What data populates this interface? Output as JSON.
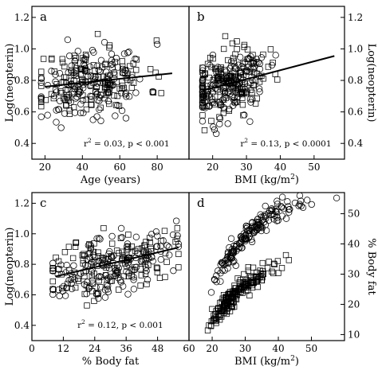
{
  "chart_data": [
    {
      "id": "a",
      "type": "scatter",
      "panel_label": "a",
      "xlabel": "Age (years)",
      "ylabel": "Log(neopterin)",
      "xlim": [
        13,
        97
      ],
      "ylim": [
        0.3,
        1.27
      ],
      "xticks": [
        20,
        40,
        60,
        80
      ],
      "yticks": [
        0.4,
        0.6,
        0.8,
        1.0,
        1.2
      ],
      "ytick_labels": [
        "0.4",
        "0.6",
        "0.8",
        "1.0",
        "1.2"
      ],
      "annotation": "r² = 0.03, p < 0.001",
      "fit": {
        "x": [
          20,
          88
        ],
        "y": [
          0.76,
          0.845
        ]
      },
      "cloud": {
        "seed": 11,
        "n_sq": 140,
        "n_ci": 140,
        "x": [
          18,
          88
        ],
        "x_center": 45,
        "x_sd": 15,
        "y_sd": 0.11,
        "y_min": 0.36,
        "y_max": 1.2
      }
    },
    {
      "id": "b",
      "type": "scatter",
      "panel_label": "b",
      "xlabel": "BMI (kg/m²)",
      "ylabel": "Log(neopterin)",
      "xlim": [
        13,
        59
      ],
      "ylim": [
        0.3,
        1.27
      ],
      "xticks": [
        20,
        30,
        40,
        50
      ],
      "yticks": [
        0.4,
        0.6,
        0.8,
        1.0,
        1.2
      ],
      "ytick_labels": [
        "0.4",
        "0.6",
        "0.8",
        "1.0",
        "1.2"
      ],
      "annotation": "r² = 0.13, p < 0.0001",
      "fit": {
        "x": [
          17,
          56
        ],
        "y": [
          0.735,
          0.955
        ]
      },
      "cloud": {
        "seed": 23,
        "n_sq": 150,
        "n_ci": 150,
        "x": [
          17,
          56
        ],
        "x_center": 24,
        "x_sd": 6,
        "y_sd": 0.1,
        "y_min": 0.37,
        "y_max": 1.18
      }
    },
    {
      "id": "c",
      "type": "scatter",
      "panel_label": "c",
      "xlabel": "% Body fat",
      "ylabel": "Log(neopterin)",
      "xlim": [
        0,
        60
      ],
      "ylim": [
        0.3,
        1.27
      ],
      "xticks": [
        0,
        12,
        24,
        36,
        48,
        60
      ],
      "yticks": [
        0.4,
        0.6,
        0.8,
        1.0,
        1.2
      ],
      "ytick_labels": [
        "0.4",
        "0.6",
        "0.8",
        "1.0",
        "1.2"
      ],
      "annotation": "r² = 0.12, p < 0.001",
      "fit": {
        "x": [
          9,
          56
        ],
        "y": [
          0.72,
          0.91
        ]
      },
      "cloud": {
        "seed": 37,
        "n_sq": 140,
        "n_ci": 140,
        "x": [
          8,
          56
        ],
        "x_center": 30,
        "x_sd": 12,
        "y_sd": 0.1,
        "y_min": 0.4,
        "y_max": 1.2
      }
    },
    {
      "id": "d",
      "type": "scatter",
      "panel_label": "d",
      "xlabel": "BMI (kg/m²)",
      "ylabel": "% Body fat",
      "xlim": [
        13,
        60
      ],
      "ylim": [
        8,
        57
      ],
      "xticks": [
        20,
        30,
        40,
        50
      ],
      "yticks": [
        10,
        20,
        30,
        40,
        50
      ],
      "ytick_labels": [
        "10",
        "20",
        "30",
        "40",
        "50"
      ],
      "annotation": "",
      "bands": [
        {
          "marker": "square",
          "n": 190,
          "x": [
            18,
            56
          ],
          "x_center": 24,
          "x_sd": 7,
          "a": 10,
          "b": 34,
          "k": 20,
          "y_sd": 1.6
        },
        {
          "marker": "circle",
          "n": 170,
          "x": [
            17,
            58
          ],
          "x_center": 27,
          "x_sd": 9,
          "a": 18,
          "b": 40,
          "k": 14,
          "y_sd": 1.8
        }
      ]
    }
  ]
}
